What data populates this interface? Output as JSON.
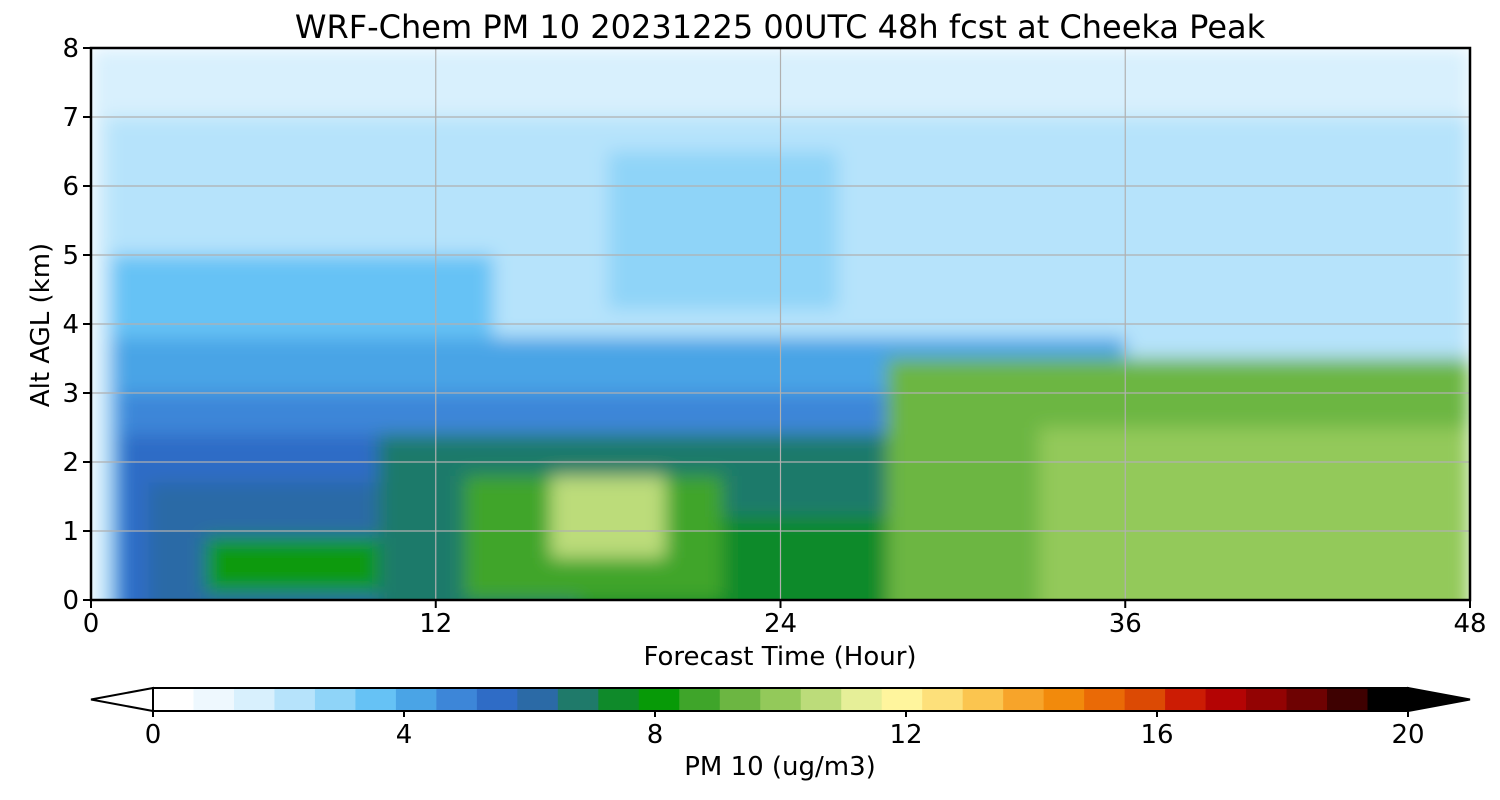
{
  "chart_data": {
    "type": "heatmap",
    "title": "WRF-Chem PM 10  20231225 00UTC 48h fcst at Cheeka Peak",
    "xlabel": "Forecast Time (Hour)",
    "ylabel": "Alt AGL (km)",
    "xlim": [
      0,
      48
    ],
    "ylim": [
      0,
      8
    ],
    "xticks": [
      0,
      12,
      24,
      36,
      48
    ],
    "yticks": [
      0,
      1,
      2,
      3,
      4,
      5,
      6,
      7,
      8
    ],
    "grid": true,
    "colorbar": {
      "label": "PM 10  (ug/m3)",
      "range": [
        0,
        20
      ],
      "ticks": [
        0,
        4,
        8,
        12,
        16,
        20
      ],
      "extend": "both",
      "colors": [
        "#ffffff",
        "#eef8fe",
        "#d8f0fd",
        "#b6e3fb",
        "#8fd4f8",
        "#66c2f5",
        "#4aa4e6",
        "#3d86d8",
        "#2f6cc6",
        "#2b6aa6",
        "#1f7a6a",
        "#0f8a2a",
        "#079a07",
        "#3fa52a",
        "#6cb642",
        "#93c95a",
        "#bcdc7a",
        "#e6ef98",
        "#fff59d",
        "#fde07a",
        "#fbc54f",
        "#f7a42a",
        "#f28a0c",
        "#ea6a06",
        "#dc4a04",
        "#cc1c04",
        "#b40404",
        "#930303",
        "#6e0202",
        "#3e0101",
        "#000000"
      ]
    },
    "regions": [
      {
        "level": 2,
        "hour": [
          0,
          48
        ],
        "alt_km": [
          0,
          8
        ]
      },
      {
        "level": 3,
        "hour": [
          0.5,
          48
        ],
        "alt_km": [
          0,
          7
        ]
      },
      {
        "level": 4,
        "hour": [
          18,
          26
        ],
        "alt_km": [
          4.5,
          6.5
        ]
      },
      {
        "level": 5,
        "hour": [
          0.7,
          14
        ],
        "alt_km": [
          0,
          5
        ]
      },
      {
        "level": 6,
        "hour": [
          0.7,
          36
        ],
        "alt_km": [
          0,
          3.8
        ]
      },
      {
        "level": 7,
        "hour": [
          1,
          34
        ],
        "alt_km": [
          0,
          3
        ]
      },
      {
        "level": 8,
        "hour": [
          1,
          33
        ],
        "alt_km": [
          0,
          2.4
        ]
      },
      {
        "level": 9,
        "hour": [
          2,
          32
        ],
        "alt_km": [
          0,
          1.7
        ]
      },
      {
        "level": 10,
        "hour": [
          10,
          32
        ],
        "alt_km": [
          0,
          2.4
        ]
      },
      {
        "level": 11,
        "hour": [
          17,
          29
        ],
        "alt_km": [
          0,
          1.2
        ]
      },
      {
        "level": 12,
        "hour": [
          4,
          10
        ],
        "alt_km": [
          0.4,
          0.9
        ]
      },
      {
        "level": 13,
        "hour": [
          13,
          22
        ],
        "alt_km": [
          0.3,
          1.8
        ]
      },
      {
        "level": 14,
        "hour": [
          27.7,
          48
        ],
        "alt_km": [
          0,
          3.5
        ]
      },
      {
        "level": 15,
        "hour": [
          33,
          48
        ],
        "alt_km": [
          0,
          2.5
        ]
      },
      {
        "level": 16,
        "hour": [
          16,
          20
        ],
        "alt_km": [
          0.9,
          1.8
        ]
      }
    ]
  }
}
